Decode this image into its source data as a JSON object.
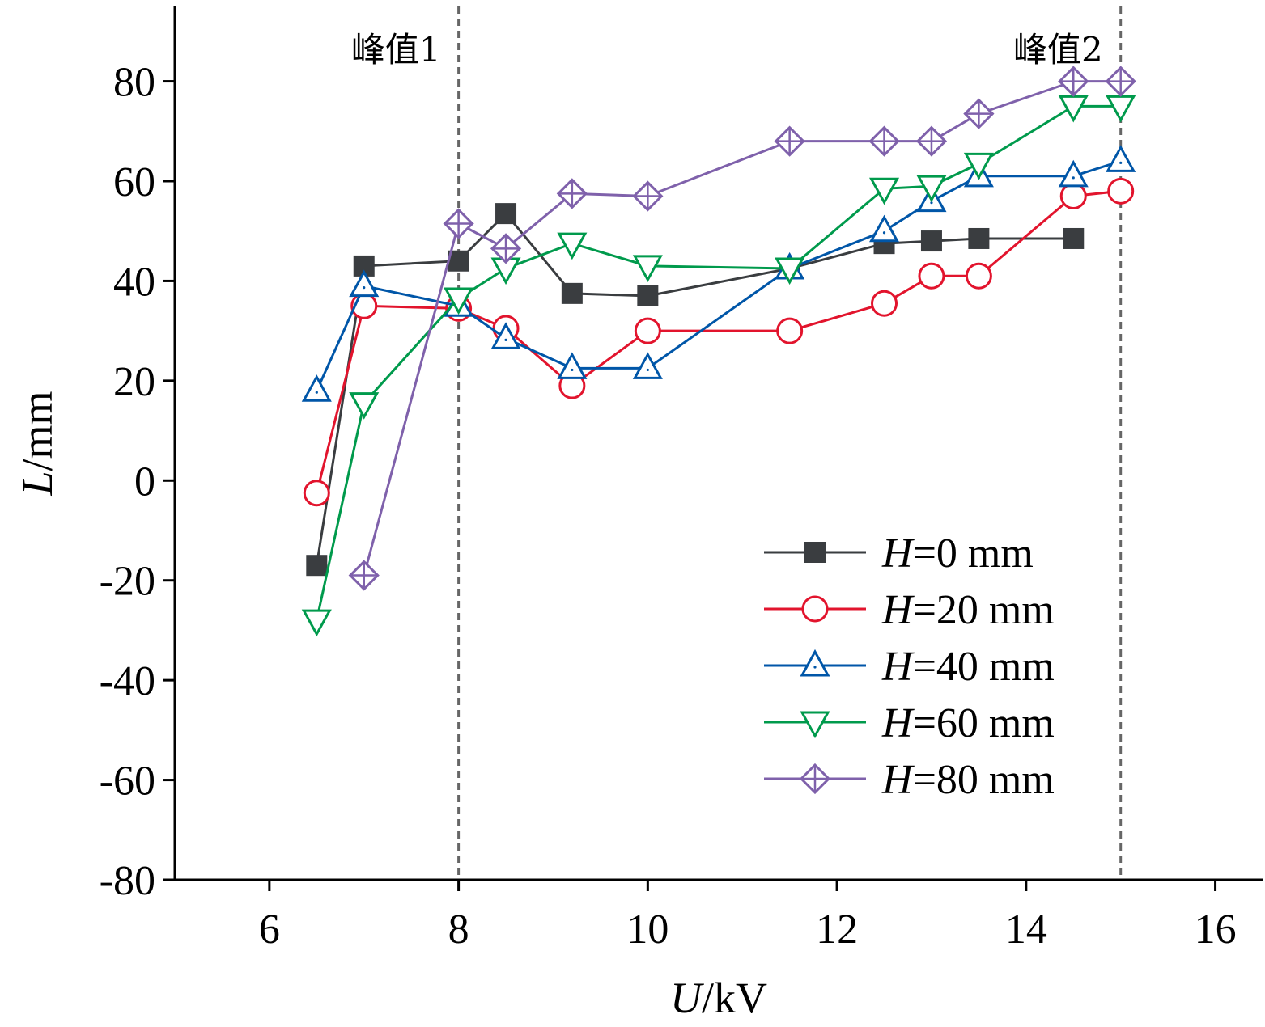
{
  "chart_data": {
    "type": "line",
    "title": "",
    "xlabel": {
      "var": "U",
      "unit": "/kV"
    },
    "ylabel": {
      "var": "L",
      "unit": "/mm"
    },
    "xlim": [
      5,
      16.5
    ],
    "ylim": [
      -80,
      95
    ],
    "xticks": [
      6,
      8,
      10,
      12,
      14,
      16
    ],
    "yticks": [
      -80,
      -60,
      -40,
      -20,
      0,
      20,
      40,
      60,
      80
    ],
    "grid": false,
    "legend_position": "bottom-right",
    "reference_lines": [
      {
        "x": 8,
        "label": "峰值1"
      },
      {
        "x": 15,
        "label": "峰值2"
      }
    ],
    "series": [
      {
        "name": "=0 mm",
        "legend_var": "H",
        "color": "#3a3d40",
        "marker": "filled-square",
        "x": [
          6.5,
          7,
          8,
          8.5,
          9.2,
          10,
          11.5,
          12.5,
          13,
          13.5,
          14.5
        ],
        "y": [
          -17,
          43,
          44,
          53.5,
          37.5,
          37,
          42.5,
          47.5,
          48,
          48.5,
          48.5
        ]
      },
      {
        "name": "=20 mm",
        "legend_var": "H",
        "color": "#e2142d",
        "marker": "circle",
        "x": [
          6.5,
          7,
          8,
          8.5,
          9.2,
          10,
          11.5,
          12.5,
          13,
          13.5,
          14.5,
          15
        ],
        "y": [
          -2.5,
          35,
          34.5,
          30.5,
          19,
          30,
          30,
          35.5,
          41,
          41,
          57,
          58
        ]
      },
      {
        "name": "=40 mm",
        "legend_var": "H",
        "color": "#0056a8",
        "marker": "triangle-up",
        "x": [
          6.5,
          7,
          8,
          8.5,
          9.2,
          10,
          11.5,
          12.5,
          13,
          13.5,
          14.5,
          15
        ],
        "y": [
          18,
          39,
          35,
          28.5,
          22.5,
          22.5,
          42.5,
          50,
          56,
          61,
          61,
          64
        ]
      },
      {
        "name": "=60 mm",
        "legend_var": "H",
        "color": "#009a4c",
        "marker": "triangle-down",
        "x": [
          6.5,
          7,
          8,
          8.5,
          9.2,
          10,
          11.5,
          12.5,
          13,
          13.5,
          14.5,
          15
        ],
        "y": [
          -28,
          15.5,
          36.5,
          42.5,
          47.5,
          43,
          42.5,
          58.5,
          59,
          63.5,
          75,
          75
        ]
      },
      {
        "name": "=80 mm",
        "legend_var": "H",
        "color": "#7f61ab",
        "marker": "crossed-diamond",
        "x": [
          7,
          8,
          8.5,
          9.2,
          10,
          11.5,
          12.5,
          13,
          13.5,
          14.5,
          15
        ],
        "y": [
          -19,
          51.5,
          46.5,
          57.5,
          57,
          68,
          68,
          68,
          73.5,
          80,
          80
        ]
      }
    ]
  }
}
